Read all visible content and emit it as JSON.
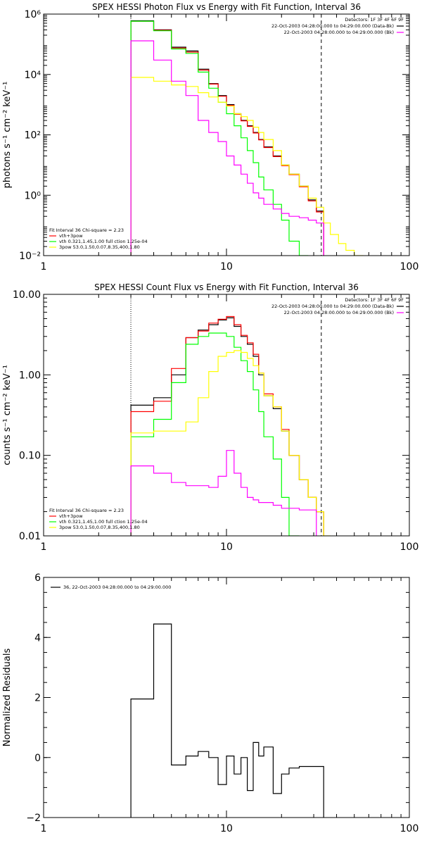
{
  "chart_data": [
    {
      "type": "line",
      "title": "SPEX HESSI Photon Flux vs Energy with Fit Function, Interval 36",
      "ylabel": "photons s⁻¹ cm⁻² keV⁻¹",
      "xlabel": "",
      "xscale": "log",
      "yscale": "log",
      "xlim": [
        1,
        100
      ],
      "ylim": [
        0.01,
        1000000
      ],
      "xticks": [
        1,
        10,
        100
      ],
      "xtick_labels": [
        "1",
        "10",
        "100"
      ],
      "yticks": [
        0.01,
        1,
        100,
        10000,
        1000000
      ],
      "ytick_labels": [
        "10⁻²",
        "10⁰",
        "10²",
        "10⁴",
        "10⁶"
      ],
      "vlines": [
        {
          "x": 3.0,
          "style": "dotted"
        },
        {
          "x": 33.0,
          "style": "dashed"
        }
      ],
      "legend_top": {
        "header": "Detectors: 1F 3F 4F 6F 9F",
        "entries": [
          {
            "text": "22-Oct-2003 04:28:00.000 to 04:29:00.000 (Data-Bk)",
            "color": "#000000"
          },
          {
            "text": "22-Oct-2003 04:28:00.000 to 04:29:00.000 (Bk)",
            "color": "#ff00ff"
          }
        ]
      },
      "legend_fit": {
        "header": "Fit Interval 36   Chi-square = 2.23",
        "entries": [
          {
            "text": "vth+3pow",
            "color": "#ff0000"
          },
          {
            "text": "vth 0.321,1.45,1.00  full ction 1.25e-04",
            "color": "#00ff00"
          },
          {
            "text": "3pow 53.0,1.50,0.07,8.35,400,1.80",
            "color": "#ffff00"
          }
        ]
      },
      "edges": [
        3.0,
        3.5,
        4.0,
        5.0,
        6.0,
        7.0,
        8.0,
        9.0,
        10.0,
        11.0,
        12.0,
        13.0,
        14.0,
        15.0,
        16.0,
        18.0,
        20.0,
        22.0,
        25.0,
        28.0,
        31.0,
        34.0,
        37.0,
        41.0,
        45.0,
        50.0,
        56.0
      ],
      "series": [
        {
          "name": "Data-Bk",
          "color": "#000000",
          "values": [
            600000,
            600000,
            300000,
            80000,
            60000,
            15000,
            5000,
            2000,
            1000,
            500,
            300,
            200,
            120,
            70,
            40,
            20,
            10,
            5,
            2,
            0.7,
            0.3,
            null,
            null,
            null,
            null,
            null
          ]
        },
        {
          "name": "vth+3pow",
          "color": "#ff0000",
          "values": [
            580000,
            580000,
            290000,
            75000,
            55000,
            14000,
            4800,
            1900,
            950,
            480,
            290,
            190,
            115,
            68,
            38,
            19,
            9.5,
            4.8,
            1.9,
            0.65,
            0.28,
            null,
            null,
            null,
            null,
            null
          ]
        },
        {
          "name": "vth",
          "color": "#00ff00",
          "values": [
            580000,
            580000,
            280000,
            70000,
            50000,
            12000,
            3500,
            1200,
            500,
            200,
            80,
            30,
            12,
            4,
            1.5,
            0.5,
            0.15,
            0.03,
            0.01,
            null,
            null,
            null,
            null,
            null,
            null,
            null
          ]
        },
        {
          "name": "3pow",
          "color": "#ffff00",
          "values": [
            8000,
            8000,
            6000,
            4500,
            4000,
            2500,
            1800,
            1200,
            900,
            500,
            400,
            300,
            180,
            120,
            70,
            30,
            10,
            5,
            2,
            0.8,
            0.4,
            0.12,
            0.05,
            0.025,
            0.015,
            0.01
          ]
        },
        {
          "name": "Bk",
          "color": "#ff00ff",
          "values": [
            130000,
            130000,
            30000,
            6000,
            2000,
            300,
            120,
            60,
            20,
            10,
            5,
            2.5,
            1.2,
            0.8,
            0.5,
            0.35,
            0.25,
            0.2,
            0.18,
            0.15,
            0.12,
            null,
            null,
            null,
            null,
            null
          ]
        }
      ]
    },
    {
      "type": "line",
      "title": "SPEX HESSI Count Flux vs Energy with Fit Function, Interval 36",
      "ylabel": "counts s⁻¹ cm⁻² keV⁻¹",
      "xlabel": "",
      "xscale": "log",
      "yscale": "log",
      "xlim": [
        1,
        100
      ],
      "ylim": [
        0.01,
        10
      ],
      "xticks": [
        1,
        10,
        100
      ],
      "xtick_labels": [
        "1",
        "10",
        "100"
      ],
      "yticks": [
        0.01,
        0.1,
        1,
        10
      ],
      "ytick_labels": [
        "0.01",
        "0.10",
        "1.00",
        "10.00"
      ],
      "vlines": [
        {
          "x": 3.0,
          "style": "dotted"
        },
        {
          "x": 33.0,
          "style": "dashed"
        }
      ],
      "legend_top": {
        "header": "Detectors: 1F 3F 4F 6F 9F",
        "entries": [
          {
            "text": "22-Oct-2003 04:28:00.000 to 04:29:00.000 (Data-Bk)",
            "color": "#000000"
          },
          {
            "text": "22-Oct-2003 04:28:00.000 to 04:29:00.000 (Bk)",
            "color": "#ff00ff"
          }
        ]
      },
      "legend_fit": {
        "header": "Fit Interval 36   Chi-square = 2.23",
        "entries": [
          {
            "text": "vth+3pow",
            "color": "#ff0000"
          },
          {
            "text": "vth 0.321,1.45,1.00  full ction 1.25e-04",
            "color": "#00ff00"
          },
          {
            "text": "3pow 53.0,1.50,0.07,8.35,400,1.80",
            "color": "#ffff00"
          }
        ]
      },
      "edges": [
        3.0,
        4.0,
        5.0,
        6.0,
        7.0,
        8.0,
        9.0,
        10.0,
        11.0,
        12.0,
        13.0,
        14.0,
        15.0,
        16.0,
        18.0,
        20.0,
        22.0,
        25.0,
        28.0,
        31.0,
        34.0,
        37.0
      ],
      "series": [
        {
          "name": "Data-Bk",
          "color": "#000000",
          "values": [
            0.42,
            0.52,
            1.0,
            2.9,
            3.6,
            4.2,
            4.8,
            5.1,
            4.0,
            3.0,
            2.4,
            1.7,
            1.0,
            0.55,
            0.38,
            0.2,
            0.1,
            0.05,
            0.03,
            0.02,
            null
          ]
        },
        {
          "name": "vth+3pow",
          "color": "#ff0000",
          "values": [
            0.35,
            0.47,
            1.2,
            2.9,
            3.5,
            4.4,
            4.9,
            5.3,
            4.2,
            3.1,
            2.5,
            1.8,
            1.05,
            0.58,
            0.4,
            0.21,
            0.1,
            0.05,
            0.03,
            0.02,
            null
          ]
        },
        {
          "name": "vth",
          "color": "#00ff00",
          "values": [
            0.17,
            0.28,
            0.8,
            2.4,
            3.0,
            3.3,
            3.3,
            3.0,
            2.2,
            1.5,
            1.1,
            0.65,
            0.35,
            0.17,
            0.09,
            0.03,
            0.01,
            null,
            null,
            null,
            null
          ]
        },
        {
          "name": "3pow",
          "color": "#ffff00",
          "values": [
            0.19,
            0.2,
            0.2,
            0.26,
            0.52,
            1.1,
            1.7,
            1.9,
            2.0,
            1.9,
            1.6,
            1.3,
            1.05,
            0.55,
            0.4,
            0.2,
            0.1,
            0.05,
            0.03,
            0.02,
            0.01
          ]
        },
        {
          "name": "Bk",
          "color": "#ff00ff",
          "values": [
            0.074,
            0.06,
            0.046,
            0.042,
            0.042,
            0.04,
            0.055,
            0.115,
            0.06,
            0.04,
            0.03,
            0.028,
            0.026,
            0.026,
            0.024,
            0.022,
            0.022,
            0.021,
            0.021,
            null,
            null
          ]
        }
      ]
    },
    {
      "type": "line",
      "title": "",
      "ylabel": "Normalized Residuals",
      "xlabel": "",
      "xscale": "log",
      "yscale": "linear",
      "xlim": [
        1,
        100
      ],
      "ylim": [
        -2,
        6
      ],
      "xticks": [
        1,
        10,
        100
      ],
      "xtick_labels": [
        "1",
        "10",
        "100"
      ],
      "yticks": [
        -2,
        0,
        2,
        4,
        6
      ],
      "ytick_labels": [
        "−2",
        "0",
        "2",
        "4",
        "6"
      ],
      "legend": "36, 22-Oct-2003 04:28:00.000 to 04:29:00.000",
      "edges": [
        3.0,
        4.0,
        5.0,
        6.0,
        7.0,
        8.0,
        9.0,
        10.0,
        11.0,
        12.0,
        13.0,
        14.0,
        15.0,
        16.0,
        18.0,
        20.0,
        22.0,
        25.0,
        28.0,
        31.0,
        34.0
      ],
      "series": [
        {
          "name": "",
          "color": "#000000",
          "values": [
            1.95,
            4.45,
            -0.25,
            0.05,
            0.2,
            0.0,
            -0.9,
            0.05,
            -0.55,
            0.0,
            -1.1,
            0.5,
            0.05,
            0.35,
            -1.2,
            -0.55,
            -0.35,
            -0.3,
            -0.3,
            -0.3
          ]
        }
      ]
    }
  ]
}
